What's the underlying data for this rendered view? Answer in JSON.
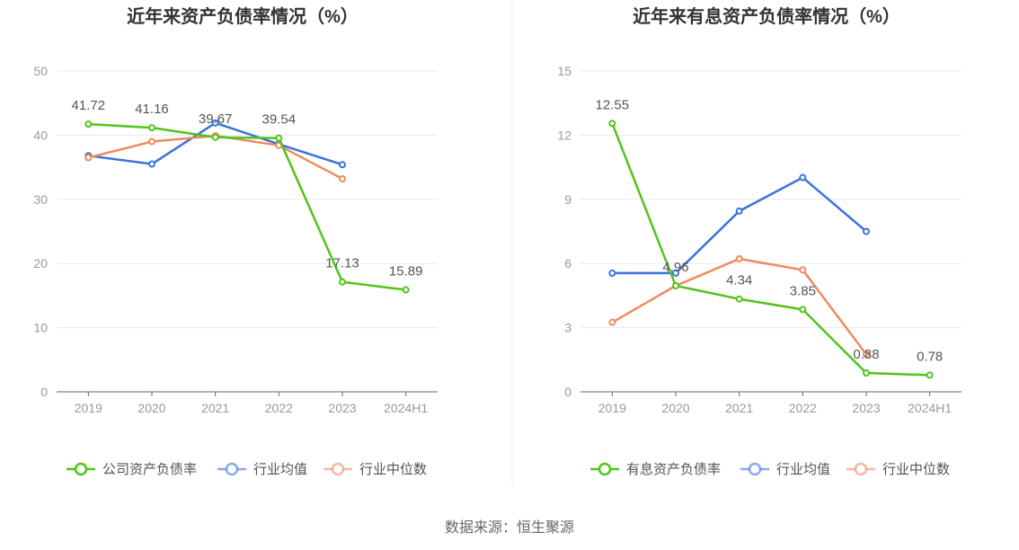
{
  "source_label": "数据来源：恒生聚源",
  "chart_data": [
    {
      "type": "line",
      "title": "近年来资产负债率情况（%）",
      "categories": [
        "2019",
        "2020",
        "2021",
        "2022",
        "2023",
        "2024H1"
      ],
      "ylim": [
        0,
        50
      ],
      "yticks": [
        "0",
        "10",
        "20",
        "30",
        "40",
        "50"
      ],
      "grid": true,
      "legend_position": "bottom",
      "series": [
        {
          "name": "公司资产负债率",
          "color": "#52c41a",
          "values": [
            41.72,
            41.16,
            39.67,
            39.54,
            17.13,
            15.89
          ],
          "labels": [
            "41.72",
            "41.16",
            "39.67",
            "39.54",
            "17.13",
            "15.89"
          ]
        },
        {
          "name": "行业均值",
          "color": "#3b73db",
          "values": [
            36.8,
            35.5,
            41.9,
            38.6,
            35.4,
            null
          ]
        },
        {
          "name": "行业中位数",
          "color": "#f08a5d",
          "values": [
            36.5,
            39.0,
            39.9,
            38.4,
            33.2,
            null
          ]
        }
      ]
    },
    {
      "type": "line",
      "title": "近年来有息资产负债率情况（%）",
      "categories": [
        "2019",
        "2020",
        "2021",
        "2022",
        "2023",
        "2024H1"
      ],
      "ylim": [
        0,
        15
      ],
      "yticks": [
        "0",
        "3",
        "6",
        "9",
        "12",
        "15"
      ],
      "grid": true,
      "legend_position": "bottom",
      "series": [
        {
          "name": "有息资产负债率",
          "color": "#52c41a",
          "values": [
            12.55,
            4.96,
            4.34,
            3.85,
            0.88,
            0.78
          ],
          "labels": [
            "12.55",
            "4.96",
            "4.34",
            "3.85",
            "0.88",
            "0.78"
          ]
        },
        {
          "name": "行业均值",
          "color": "#3b73db",
          "values": [
            5.55,
            5.55,
            8.45,
            10.02,
            7.5,
            null
          ]
        },
        {
          "name": "行业中位数",
          "color": "#f08a5d",
          "values": [
            3.25,
            4.96,
            6.22,
            5.7,
            1.75,
            null
          ]
        }
      ]
    }
  ]
}
